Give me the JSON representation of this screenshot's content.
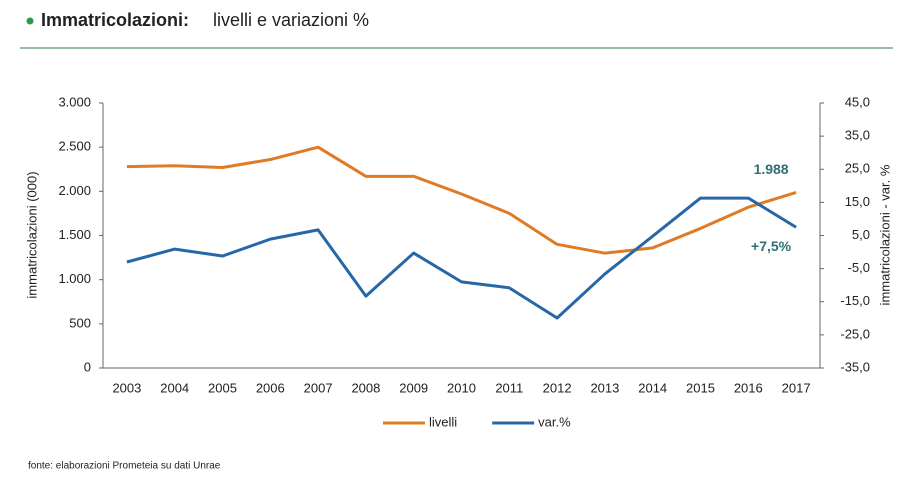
{
  "chart_data": {
    "type": "line",
    "title": "Immatricolazioni:",
    "subtitle": "livelli e variazioni %",
    "source": "fonte: elaborazioni Prometeia su dati Unrae",
    "y_label": "immatricolazioni (000)",
    "y2_label": "immatricolazioni - var. %",
    "categories": [
      "2003",
      "2004",
      "2005",
      "2006",
      "2007",
      "2008",
      "2009",
      "2010",
      "2011",
      "2012",
      "2013",
      "2014",
      "2015",
      "2016",
      "2017"
    ],
    "series": [
      {
        "name": "livelli",
        "color": "#e07b25",
        "axis": "y",
        "values": [
          2280,
          2290,
          2270,
          2360,
          2500,
          2170,
          2170,
          1970,
          1750,
          1400,
          1300,
          1360,
          1580,
          1820,
          1988
        ],
        "value_labels": [
          null,
          null,
          null,
          null,
          null,
          null,
          null,
          null,
          null,
          null,
          null,
          null,
          null,
          null,
          "1.988"
        ]
      },
      {
        "name": "var.%",
        "color": "#2767a7",
        "axis": "y2",
        "values": [
          -3.0,
          0.9,
          -1.2,
          3.9,
          6.7,
          -13.3,
          -0.3,
          -9.0,
          -10.8,
          -19.9,
          -6.6,
          4.8,
          16.3,
          16.3,
          7.5
        ],
        "value_labels": [
          null,
          null,
          null,
          null,
          null,
          null,
          null,
          null,
          null,
          null,
          null,
          null,
          null,
          null,
          "+7,5%"
        ]
      }
    ],
    "ylim": [
      0,
      3000
    ],
    "yticks": [
      0,
      500,
      {
        "value": 1000,
        "label": "1.000"
      },
      {
        "value": 1500,
        "label": "1.500"
      },
      {
        "value": 2000,
        "label": "2.000"
      },
      {
        "value": 2500,
        "label": "2.500"
      },
      {
        "value": 3000,
        "label": "3.000"
      }
    ],
    "y2lim": [
      -35,
      45
    ],
    "y2ticks": [
      {
        "value": -35,
        "label": "-35,0"
      },
      {
        "value": -25,
        "label": "-25,0"
      },
      {
        "value": -15,
        "label": "-15,0"
      },
      {
        "value": -5,
        "label": "-5,0"
      },
      {
        "value": 5,
        "label": "5,0"
      },
      {
        "value": 15,
        "label": "15,0"
      },
      {
        "value": 25,
        "label": "25,0"
      },
      {
        "value": 35,
        "label": "35,0"
      },
      {
        "value": 45,
        "label": "45,0"
      }
    ],
    "grid": false,
    "legend": "bottom"
  }
}
